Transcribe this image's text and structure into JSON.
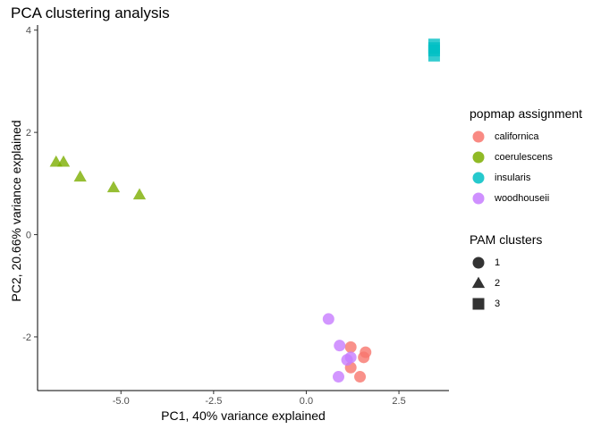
{
  "chart_data": {
    "type": "scatter",
    "title": "PCA clustering analysis",
    "xlabel": "PC1, 40% variance explained",
    "ylabel": "PC2, 20.66% variance explained",
    "xlim": [
      -7.25,
      3.85
    ],
    "ylim": [
      -3.05,
      4.1
    ],
    "x_ticks": [
      -5.0,
      -2.5,
      0.0,
      2.5
    ],
    "x_tick_labels": [
      "-5.0",
      "-2.5",
      "0.0",
      "2.5"
    ],
    "y_ticks": [
      -2,
      0,
      2,
      4
    ],
    "y_tick_labels": [
      "-2",
      "0",
      "2",
      "4"
    ],
    "grid": false,
    "legend_position": "right",
    "color_legend": {
      "title": "popmap assignment",
      "entries": [
        {
          "label": "californica",
          "color": "#F8766D"
        },
        {
          "label": "coerulescens",
          "color": "#7CAE00"
        },
        {
          "label": "insularis",
          "color": "#00BFC4"
        },
        {
          "label": "woodhouseii",
          "color": "#C77CFF"
        }
      ]
    },
    "shape_legend": {
      "title": "PAM clusters",
      "entries": [
        {
          "label": "1",
          "shape": "circle"
        },
        {
          "label": "2",
          "shape": "triangle"
        },
        {
          "label": "3",
          "shape": "square"
        }
      ]
    },
    "series": [
      {
        "name": "californica",
        "shape": "circle",
        "points": [
          {
            "x": 1.2,
            "y": -2.2
          },
          {
            "x": 1.6,
            "y": -2.3
          },
          {
            "x": 1.55,
            "y": -2.4
          },
          {
            "x": 1.2,
            "y": -2.6
          },
          {
            "x": 1.45,
            "y": -2.78
          }
        ]
      },
      {
        "name": "coerulescens",
        "shape": "triangle",
        "points": [
          {
            "x": -6.75,
            "y": 1.42
          },
          {
            "x": -6.55,
            "y": 1.42
          },
          {
            "x": -6.1,
            "y": 1.13
          },
          {
            "x": -5.2,
            "y": 0.92
          },
          {
            "x": -4.5,
            "y": 0.78
          }
        ]
      },
      {
        "name": "insularis",
        "shape": "square",
        "points": [
          {
            "x": 3.45,
            "y": 3.72
          },
          {
            "x": 3.45,
            "y": 3.65
          },
          {
            "x": 3.45,
            "y": 3.6
          },
          {
            "x": 3.45,
            "y": 3.5
          }
        ]
      },
      {
        "name": "woodhouseii",
        "shape": "circle",
        "points": [
          {
            "x": 0.6,
            "y": -1.65
          },
          {
            "x": 0.9,
            "y": -2.17
          },
          {
            "x": 1.2,
            "y": -2.4
          },
          {
            "x": 1.1,
            "y": -2.45
          },
          {
            "x": 0.87,
            "y": -2.78
          }
        ]
      }
    ]
  }
}
